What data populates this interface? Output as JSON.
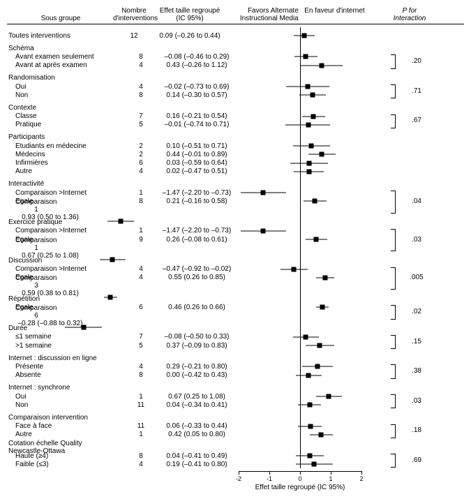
{
  "headers": {
    "group": "Sous groupe",
    "n": "Nombre d'interventions",
    "effect": "Effet taille regroupé (IC 95%)",
    "plot_left": "Favors Alternate Instructional Media",
    "plot_right": "En faveur d'internet",
    "p": "P for Interaction"
  },
  "plot": {
    "xmin": -2.5,
    "xmax": 2.5,
    "zero": 0,
    "ticks": [
      -2,
      -1,
      0,
      1,
      2
    ],
    "axis_title": "Effet taille regroupé (IC 95%)",
    "point_color": "#000000",
    "ci_color": "#000000"
  },
  "sections": [
    {
      "group": "",
      "p": "",
      "rows": [
        {
          "label": "Toutes interventions",
          "indent": false,
          "n": "12",
          "effect_text": "0.09 (–0.26 to 0.44)",
          "pt": 0.09,
          "lo": -0.26,
          "hi": 0.44
        }
      ]
    },
    {
      "group": "Schéma",
      "p": ".20",
      "rows": [
        {
          "label": "Avant examen seulement",
          "indent": true,
          "n": "8",
          "effect_text": "–0.08 (–0.46 to 0.29)",
          "pt": -0.08,
          "lo": -0.46,
          "hi": 0.29
        },
        {
          "label": "Avant at après examen",
          "indent": true,
          "n": "4",
          "effect_text": "0.43 (–0.26 to 1.12)",
          "pt": 0.43,
          "lo": -0.26,
          "hi": 1.12
        }
      ]
    },
    {
      "group": "Randomisation",
      "p": ".71",
      "rows": [
        {
          "label": "Oui",
          "indent": true,
          "n": "4",
          "effect_text": "–0.02 (–0.73 to 0.69)",
          "pt": -0.02,
          "lo": -0.73,
          "hi": 0.69
        },
        {
          "label": "Non",
          "indent": true,
          "n": "8",
          "effect_text": "0.14 (–0.30 to 0.57)",
          "pt": 0.14,
          "lo": -0.3,
          "hi": 0.57
        }
      ]
    },
    {
      "group": "Contexte",
      "p": ".67",
      "rows": [
        {
          "label": "Classe",
          "indent": true,
          "n": "7",
          "effect_text": "0.16 (–0.21 to 0.54)",
          "pt": 0.16,
          "lo": -0.21,
          "hi": 0.54
        },
        {
          "label": "Pratique",
          "indent": true,
          "n": "5",
          "effect_text": "–0.01 (–0.74 to 0.71)",
          "pt": -0.01,
          "lo": -0.74,
          "hi": 0.71
        }
      ]
    },
    {
      "group": "Participants",
      "p": "",
      "rows": [
        {
          "label": "Etudiants en médecine",
          "indent": true,
          "n": "2",
          "effect_text": "0.10 (–0.51 to 0.71)",
          "pt": 0.1,
          "lo": -0.51,
          "hi": 0.71
        },
        {
          "label": "Médecins",
          "indent": true,
          "n": "2",
          "effect_text": "0.44 (–0.01 to 0.89)",
          "pt": 0.44,
          "lo": -0.01,
          "hi": 0.89
        },
        {
          "label": "Infirmières",
          "indent": true,
          "n": "6",
          "effect_text": "0.03 (–0.59 to 0.64)",
          "pt": 0.03,
          "lo": -0.59,
          "hi": 0.64
        },
        {
          "label": "Autre",
          "indent": true,
          "n": "4",
          "effect_text": "0.02 (–0.47 to 0.51)",
          "pt": 0.02,
          "lo": -0.47,
          "hi": 0.51
        }
      ]
    },
    {
      "group": "Interactivité",
      "p": ".04",
      "rows": [
        {
          "label": "Comparaison >Internet",
          "indent": true,
          "n": "1",
          "effect_text": "–1.47 (–2.20 to –0.73)",
          "pt": -1.47,
          "lo": -2.2,
          "hi": -0.73
        },
        {
          "label": "Egale",
          "indent": true,
          "n": "8",
          "effect_text": "0.21 (–0.16 to 0.58)",
          "pt": 0.21,
          "lo": -0.16,
          "hi": 0.58
        },
        {
          "label": "Comparaison <Internet",
          "indent": true,
          "n": "1",
          "effect_text": "0.93 (0.50 to 1.36)",
          "pt": 0.93,
          "lo": 0.5,
          "hi": 1.36
        }
      ]
    },
    {
      "group": "Exercice pratique",
      "p": ".03",
      "rows": [
        {
          "label": "Comparaison >Internet",
          "indent": true,
          "n": "1",
          "effect_text": "–1.47 (–2.20 to –0.73)",
          "pt": -1.47,
          "lo": -2.2,
          "hi": -0.73
        },
        {
          "label": "Egale",
          "indent": true,
          "n": "9",
          "effect_text": "0.26 (–0.08 to 0.61)",
          "pt": 0.26,
          "lo": -0.08,
          "hi": 0.61
        },
        {
          "label": "Comparaison <Internet",
          "indent": true,
          "n": "1",
          "effect_text": "0.67 (0.25 to 1.08)",
          "pt": 0.67,
          "lo": 0.25,
          "hi": 1.08
        }
      ]
    },
    {
      "group": "Discussion",
      "p": ".005",
      "rows": [
        {
          "label": "Comparaison >Internet",
          "indent": true,
          "n": "4",
          "effect_text": "–0.47 (–0.92 to –0.02)",
          "pt": -0.47,
          "lo": -0.92,
          "hi": -0.02
        },
        {
          "label": "Egale",
          "indent": true,
          "n": "4",
          "effect_text": "0.55 (0.26 to 0.85)",
          "pt": 0.55,
          "lo": 0.26,
          "hi": 0.85
        },
        {
          "label": "Comparaison <Internet",
          "indent": true,
          "n": "3",
          "effect_text": "0.59 (0.38 to 0.81)",
          "pt": 0.59,
          "lo": 0.38,
          "hi": 0.81
        }
      ]
    },
    {
      "group": "Répétition",
      "p": ".02",
      "rows": [
        {
          "label": "Egale",
          "indent": true,
          "n": "6",
          "effect_text": "0.46 (0.26 to 0.66)",
          "pt": 0.46,
          "lo": 0.26,
          "hi": 0.66
        },
        {
          "label": "Comparaison <Internet",
          "indent": true,
          "n": "6",
          "effect_text": "–0.28 (–0.88 to 0.32)",
          "pt": -0.28,
          "lo": -0.88,
          "hi": 0.32
        }
      ]
    },
    {
      "group": "Durée",
      "p": ".15",
      "rows": [
        {
          "label": "≤1 semaine",
          "indent": true,
          "n": "7",
          "effect_text": "–0.08 (–0.50 to 0.33)",
          "pt": -0.08,
          "lo": -0.5,
          "hi": 0.33
        },
        {
          "label": ">1 semaine",
          "indent": true,
          "n": "5",
          "effect_text": "0.37 (–0.09 to 0.83)",
          "pt": 0.37,
          "lo": -0.09,
          "hi": 0.83
        }
      ]
    },
    {
      "group": "Internet : discussion en ligne",
      "p": ".38",
      "rows": [
        {
          "label": "Présente",
          "indent": true,
          "n": "4",
          "effect_text": "0.29 (–0.21 to 0.80)",
          "pt": 0.29,
          "lo": -0.21,
          "hi": 0.8
        },
        {
          "label": "Absente",
          "indent": true,
          "n": "8",
          "effect_text": "0.00 (–0.42 to 0.43)",
          "pt": 0.0,
          "lo": -0.42,
          "hi": 0.43
        }
      ]
    },
    {
      "group": "Internet : synchrone",
      "p": ".03",
      "rows": [
        {
          "label": "Oui",
          "indent": true,
          "n": "1",
          "effect_text": "0.67 (0.25 to 1.08)",
          "pt": 0.67,
          "lo": 0.25,
          "hi": 1.08
        },
        {
          "label": "Non",
          "indent": true,
          "n": "11",
          "effect_text": "0.04 (–0.34 to 0.41)",
          "pt": 0.04,
          "lo": -0.34,
          "hi": 0.41
        }
      ]
    },
    {
      "group": "Comparaison intervention",
      "p": ".18",
      "rows": [
        {
          "label": "Face à face",
          "indent": true,
          "n": "11",
          "effect_text": "0.06 (–0.33 to 0.44)",
          "pt": 0.06,
          "lo": -0.33,
          "hi": 0.44
        },
        {
          "label": "Autre",
          "indent": true,
          "n": "1",
          "effect_text": "0.42 (0.05 to 0.80)",
          "pt": 0.42,
          "lo": 0.05,
          "hi": 0.8
        }
      ]
    },
    {
      "group": "Cotation échelle Quality Newcastle-Ottawa",
      "p": ".69",
      "rows": [
        {
          "label": "Haute (≥4)",
          "indent": true,
          "n": "8",
          "effect_text": "0.04 (–0.41 to 0.49)",
          "pt": 0.04,
          "lo": -0.41,
          "hi": 0.49
        },
        {
          "label": "Faible (≤3)",
          "indent": true,
          "n": "4",
          "effect_text": "0.19 (–0.41 to 0.80)",
          "pt": 0.19,
          "lo": -0.41,
          "hi": 0.8
        }
      ]
    }
  ]
}
